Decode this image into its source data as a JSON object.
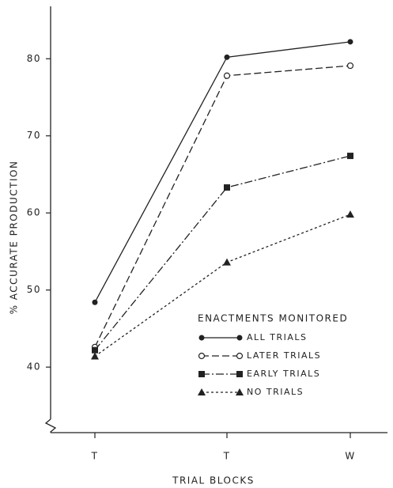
{
  "chart_data": {
    "type": "line",
    "x_label": "TRIAL BLOCKS",
    "y_label": "% ACCURATE PRODUCTION",
    "legend_title": "ENACTMENTS MONITORED",
    "categories": [
      "T",
      "T",
      "W"
    ],
    "series": [
      {
        "name": "ALL TRIALS",
        "color": "#222222",
        "values": [
          48.4,
          80.2,
          82.2
        ]
      },
      {
        "name": "LATER TRIALS",
        "color": "#222222",
        "values": [
          42.6,
          77.8,
          79.1
        ]
      },
      {
        "name": "EARLY TRIALS",
        "color": "#222222",
        "values": [
          42.2,
          63.3,
          67.4
        ]
      },
      {
        "name": "NO TRIALS",
        "color": "#222222",
        "values": [
          41.4,
          53.6,
          59.8
        ]
      }
    ],
    "ylim": [
      31.5,
      86.8
    ],
    "yticks": [
      40,
      50,
      60,
      70,
      80
    ],
    "grid": false
  }
}
